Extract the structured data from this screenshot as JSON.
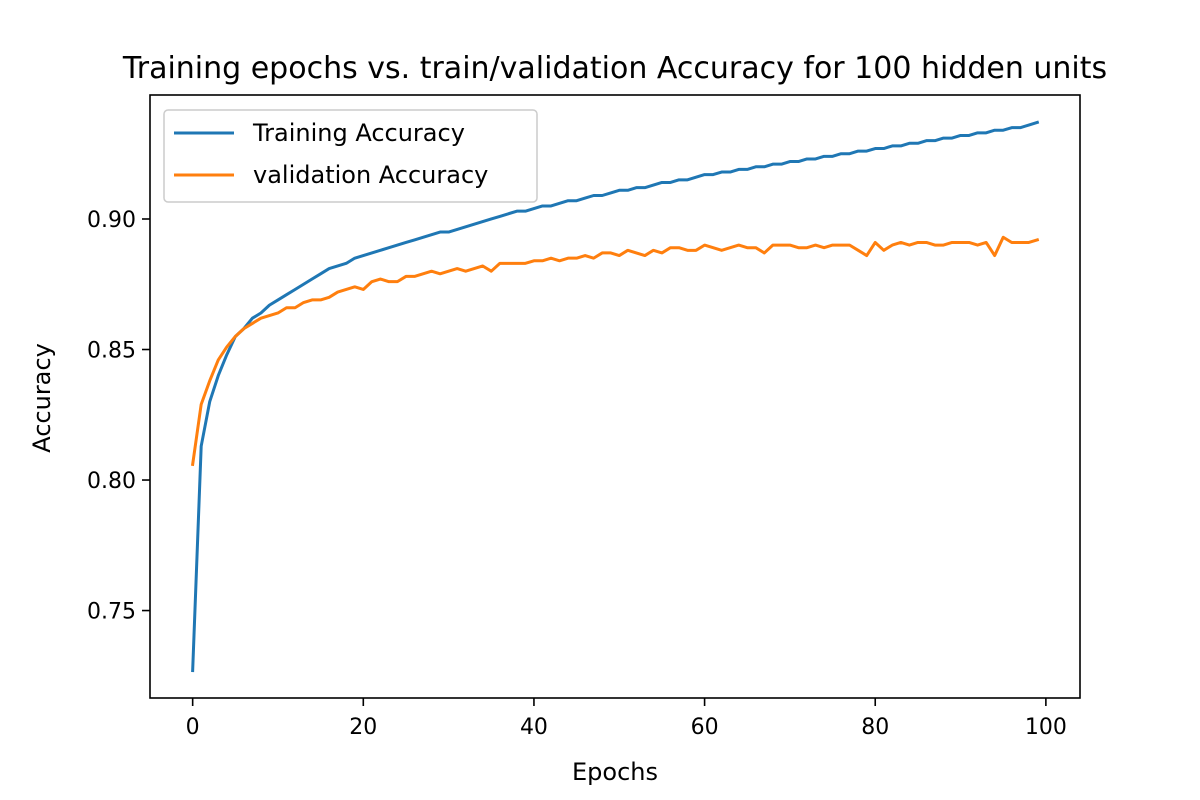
{
  "chart_data": {
    "type": "line",
    "title": "Training epochs vs. train/validation Accuracy for 100 hidden units",
    "xlabel": "Epochs",
    "ylabel": "Accuracy",
    "xlim": [
      -5,
      104
    ],
    "ylim": [
      0.7165,
      0.9475
    ],
    "xticks": [
      0,
      20,
      40,
      60,
      80,
      100
    ],
    "yticks": [
      0.75,
      0.8,
      0.85,
      0.9
    ],
    "ytick_labels": [
      "0.75",
      "0.80",
      "0.85",
      "0.90"
    ],
    "grid": false,
    "legend_position": "top-left",
    "x": [
      0,
      1,
      2,
      3,
      4,
      5,
      6,
      7,
      8,
      9,
      10,
      11,
      12,
      13,
      14,
      15,
      16,
      17,
      18,
      19,
      20,
      21,
      22,
      23,
      24,
      25,
      26,
      27,
      28,
      29,
      30,
      31,
      32,
      33,
      34,
      35,
      36,
      37,
      38,
      39,
      40,
      41,
      42,
      43,
      44,
      45,
      46,
      47,
      48,
      49,
      50,
      51,
      52,
      53,
      54,
      55,
      56,
      57,
      58,
      59,
      60,
      61,
      62,
      63,
      64,
      65,
      66,
      67,
      68,
      69,
      70,
      71,
      72,
      73,
      74,
      75,
      76,
      77,
      78,
      79,
      80,
      81,
      82,
      83,
      84,
      85,
      86,
      87,
      88,
      89,
      90,
      91,
      92,
      93,
      94,
      95,
      96,
      97,
      98,
      99
    ],
    "series": [
      {
        "name": "Training Accuracy",
        "color": "#1f77b4",
        "values": [
          0.727,
          0.813,
          0.83,
          0.84,
          0.848,
          0.855,
          0.858,
          0.862,
          0.864,
          0.867,
          0.869,
          0.871,
          0.873,
          0.875,
          0.877,
          0.879,
          0.881,
          0.882,
          0.883,
          0.885,
          0.886,
          0.887,
          0.888,
          0.889,
          0.89,
          0.891,
          0.892,
          0.893,
          0.894,
          0.895,
          0.895,
          0.896,
          0.897,
          0.898,
          0.899,
          0.9,
          0.901,
          0.902,
          0.903,
          0.903,
          0.904,
          0.905,
          0.905,
          0.906,
          0.907,
          0.907,
          0.908,
          0.909,
          0.909,
          0.91,
          0.911,
          0.911,
          0.912,
          0.912,
          0.913,
          0.914,
          0.914,
          0.915,
          0.915,
          0.916,
          0.917,
          0.917,
          0.918,
          0.918,
          0.919,
          0.919,
          0.92,
          0.92,
          0.921,
          0.921,
          0.922,
          0.922,
          0.923,
          0.923,
          0.924,
          0.924,
          0.925,
          0.925,
          0.926,
          0.926,
          0.927,
          0.927,
          0.928,
          0.928,
          0.929,
          0.929,
          0.93,
          0.93,
          0.931,
          0.931,
          0.932,
          0.932,
          0.933,
          0.933,
          0.934,
          0.934,
          0.935,
          0.935,
          0.936,
          0.937
        ]
      },
      {
        "name": "validation Accuracy",
        "color": "#ff7f0e",
        "values": [
          0.806,
          0.829,
          0.838,
          0.846,
          0.851,
          0.855,
          0.858,
          0.86,
          0.862,
          0.863,
          0.864,
          0.866,
          0.866,
          0.868,
          0.869,
          0.869,
          0.87,
          0.872,
          0.873,
          0.874,
          0.873,
          0.876,
          0.877,
          0.876,
          0.876,
          0.878,
          0.878,
          0.879,
          0.88,
          0.879,
          0.88,
          0.881,
          0.88,
          0.881,
          0.882,
          0.88,
          0.883,
          0.883,
          0.883,
          0.883,
          0.884,
          0.884,
          0.885,
          0.884,
          0.885,
          0.885,
          0.886,
          0.885,
          0.887,
          0.887,
          0.886,
          0.888,
          0.887,
          0.886,
          0.888,
          0.887,
          0.889,
          0.889,
          0.888,
          0.888,
          0.89,
          0.889,
          0.888,
          0.889,
          0.89,
          0.889,
          0.889,
          0.887,
          0.89,
          0.89,
          0.89,
          0.889,
          0.889,
          0.89,
          0.889,
          0.89,
          0.89,
          0.89,
          0.888,
          0.886,
          0.891,
          0.888,
          0.89,
          0.891,
          0.89,
          0.891,
          0.891,
          0.89,
          0.89,
          0.891,
          0.891,
          0.891,
          0.89,
          0.891,
          0.886,
          0.893,
          0.891,
          0.891,
          0.891,
          0.892
        ]
      }
    ]
  }
}
